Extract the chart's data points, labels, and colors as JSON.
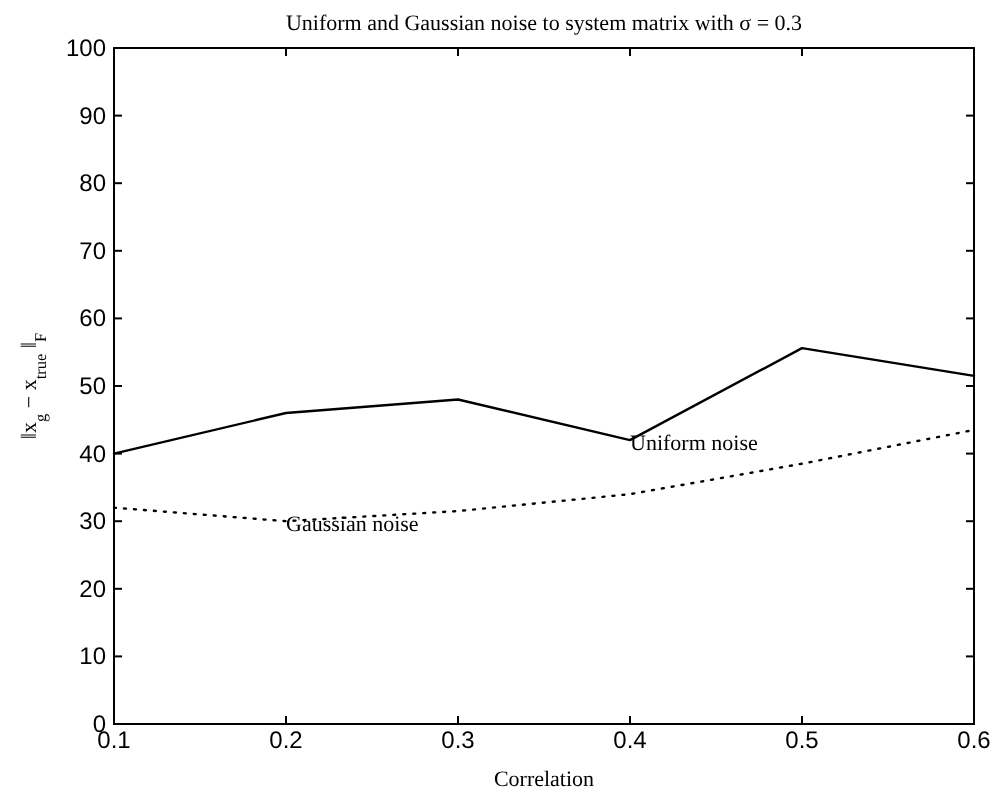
{
  "chart_data": {
    "type": "line",
    "title": "Uniform and Gaussian noise to system matrix with σ = 0.3",
    "xlabel": "Correlation",
    "ylabel": "‖x$_{g}$ − x$_{true}$‖$_{F}$",
    "x": [
      0.1,
      0.2,
      0.3,
      0.4,
      0.5,
      0.6
    ],
    "series": [
      {
        "name": "Uniform noise",
        "color": "#000000",
        "line_style": "solid",
        "values": [
          40,
          46,
          48,
          42,
          55.6,
          51.5
        ]
      },
      {
        "name": "Gaussian noise",
        "color": "#000000",
        "line_style": "dotted",
        "values": [
          32,
          30,
          31.5,
          34,
          38.5,
          43.5
        ]
      }
    ],
    "xlim": [
      0.1,
      0.6
    ],
    "xticks": [
      0.1,
      0.2,
      0.3,
      0.4,
      0.5,
      0.6
    ],
    "ylim": [
      0,
      100
    ],
    "yticks": [
      0,
      10,
      20,
      30,
      40,
      50,
      60,
      70,
      80,
      90,
      100
    ],
    "grid": false,
    "marker": "none"
  }
}
